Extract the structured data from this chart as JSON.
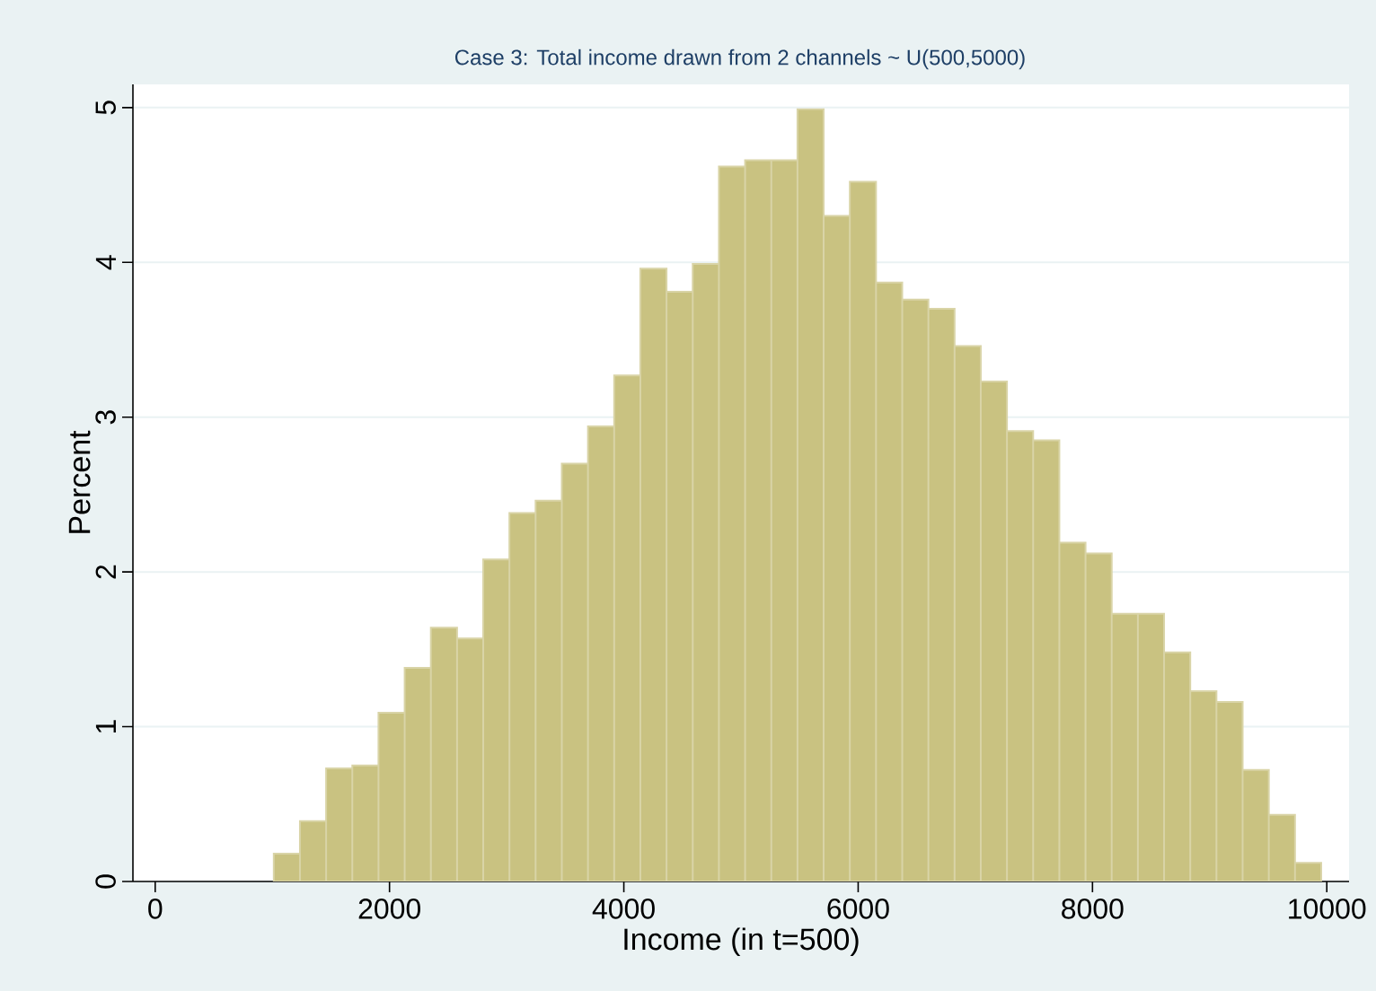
{
  "chart_data": {
    "type": "histogram",
    "title": "Case 3: Total income drawn from 2 channels ~ U(500,5000)",
    "xlabel": "Income (in t=500)",
    "ylabel": "Percent",
    "color": "#c9c281",
    "bins": [
      1012,
      1235.5,
      1459,
      1682.5,
      1906,
      2129.5,
      2353,
      2576.5,
      2800,
      3023.5,
      3247,
      3470.5,
      3694,
      3917.5,
      4141,
      4364.5,
      4588,
      4811.5,
      5035,
      5258.5,
      5482,
      5705.5,
      5929,
      6152.5,
      6376,
      6599.5,
      6823,
      7046.5,
      7270,
      7493.5,
      7717,
      7940.5,
      8164,
      8387.5,
      8611,
      8834.5,
      9058,
      9281.5,
      9505,
      9728.5,
      9952
    ],
    "values": [
      0.18,
      0.39,
      0.73,
      0.75,
      1.09,
      1.38,
      1.64,
      1.57,
      2.08,
      2.38,
      2.46,
      2.7,
      2.94,
      3.27,
      3.96,
      3.81,
      3.99,
      4.62,
      4.66,
      4.66,
      4.99,
      4.3,
      4.52,
      3.87,
      3.76,
      3.7,
      3.46,
      3.23,
      2.91,
      2.85,
      2.19,
      2.12,
      1.73,
      1.73,
      1.48,
      1.23,
      1.16,
      0.72,
      0.43,
      0.12
    ],
    "xlim": [
      -190,
      10190
    ],
    "ylim": [
      0,
      5.15
    ],
    "xticks": [
      0,
      2000,
      4000,
      6000,
      8000,
      10000
    ],
    "yticks": [
      0,
      1,
      2,
      3,
      4,
      5
    ],
    "grid": "y"
  }
}
